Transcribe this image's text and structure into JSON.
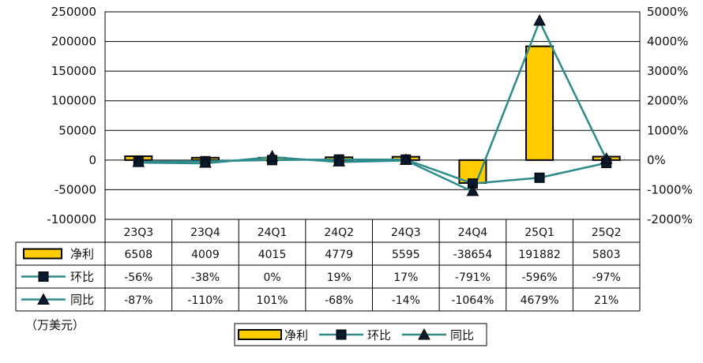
{
  "unit_label": "（万美元）",
  "chart_data": {
    "type": "bar",
    "categories": [
      "23Q3",
      "23Q4",
      "24Q1",
      "24Q2",
      "24Q3",
      "24Q4",
      "25Q1",
      "25Q2"
    ],
    "ylim_left": [
      -100000,
      250000
    ],
    "yticks_left": [
      "250000",
      "200000",
      "150000",
      "100000",
      "50000",
      "0",
      "-50000",
      "-100000"
    ],
    "ylim_right": [
      -2000,
      5000
    ],
    "yticks_right": [
      "5000%",
      "4000%",
      "3000%",
      "2000%",
      "1000%",
      "0%",
      "-1000%",
      "-2000%"
    ],
    "grid": true,
    "legend_position": "bottom",
    "series": [
      {
        "name": "净利",
        "type": "bar",
        "axis": "left",
        "color": "#FFCC00",
        "values": [
          6508,
          4009,
          4015,
          4779,
          5595,
          -38654,
          191882,
          5803
        ],
        "labels": [
          "6508",
          "4009",
          "4015",
          "4779",
          "5595",
          "-38654",
          "191882",
          "5803"
        ]
      },
      {
        "name": "环比",
        "type": "line",
        "axis": "right",
        "marker": "square",
        "color": "#2E8B8B",
        "values": [
          -56,
          -38,
          0,
          19,
          17,
          -791,
          -596,
          -97
        ],
        "labels": [
          "-56%",
          "-38%",
          "0%",
          "19%",
          "17%",
          "-791%",
          "-596%",
          "-97%"
        ]
      },
      {
        "name": "同比",
        "type": "line",
        "axis": "right",
        "marker": "triangle",
        "color": "#2E8B8B",
        "values": [
          -87,
          -110,
          101,
          -68,
          -14,
          -1064,
          4679,
          21
        ],
        "labels": [
          "-87%",
          "-110%",
          "101%",
          "-68%",
          "-14%",
          "-1064%",
          "4679%",
          "21%"
        ]
      }
    ]
  }
}
